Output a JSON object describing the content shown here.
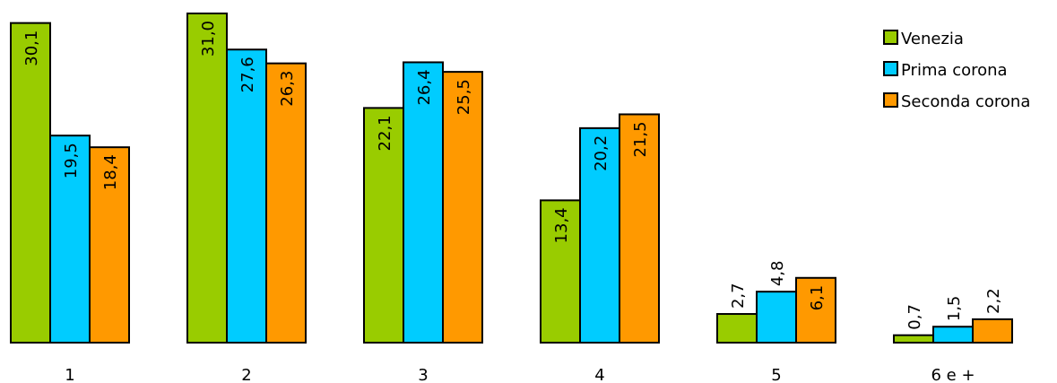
{
  "chart_data": {
    "type": "bar",
    "categories": [
      "1",
      "2",
      "3",
      "4",
      "5",
      "6 e +"
    ],
    "series": [
      {
        "name": "Venezia",
        "color": "#99cc00",
        "values": [
          30.1,
          31.0,
          22.1,
          13.4,
          2.7,
          0.7
        ],
        "labels": [
          "30,1",
          "31,0",
          "22,1",
          "13,4",
          "2,7",
          "0,7"
        ]
      },
      {
        "name": "Prima corona",
        "color": "#00ccff",
        "values": [
          19.5,
          27.6,
          26.4,
          20.2,
          4.8,
          1.5
        ],
        "labels": [
          "19,5",
          "27,6",
          "26,4",
          "20,2",
          "4,8",
          "1,5"
        ]
      },
      {
        "name": "Seconda corona",
        "color": "#ff9900",
        "values": [
          18.4,
          26.3,
          25.5,
          21.5,
          6.1,
          2.2
        ],
        "labels": [
          "18,4",
          "26,3",
          "25,5",
          "21,5",
          "6,1",
          "2,2"
        ]
      }
    ],
    "ylim": [
      0,
      31.0
    ],
    "grid": false,
    "legend": "top-right"
  }
}
